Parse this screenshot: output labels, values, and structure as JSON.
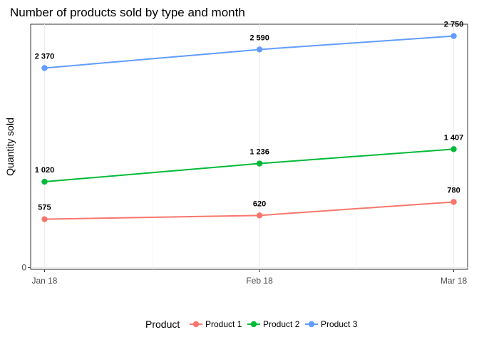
{
  "chart_data": {
    "type": "line",
    "title": "Number of products sold by type and month",
    "xlabel": "",
    "ylabel": "Quantity sold",
    "categories": [
      "Jan 18",
      "Feb 18",
      "Mar 18"
    ],
    "y_ticks": [
      0
    ],
    "y_tick_labels": [
      "0"
    ],
    "ylim": [
      -20,
      2890
    ],
    "grid": true,
    "legend": {
      "title": "Product",
      "position": "bottom"
    },
    "series": [
      {
        "name": "Product 1",
        "color": "#F8766D",
        "values": [
          575,
          620,
          780
        ],
        "labels": [
          "575",
          "620",
          "780"
        ]
      },
      {
        "name": "Product 2",
        "color": "#00BA38",
        "values": [
          1020,
          1236,
          1407
        ],
        "labels": [
          "1 020",
          "1 236",
          "1 407"
        ]
      },
      {
        "name": "Product 3",
        "color": "#619CFF",
        "values": [
          2370,
          2590,
          2750
        ],
        "labels": [
          "2 370",
          "2 590",
          "2 750"
        ]
      }
    ],
    "x_positions_days": [
      0,
      31,
      59
    ]
  }
}
